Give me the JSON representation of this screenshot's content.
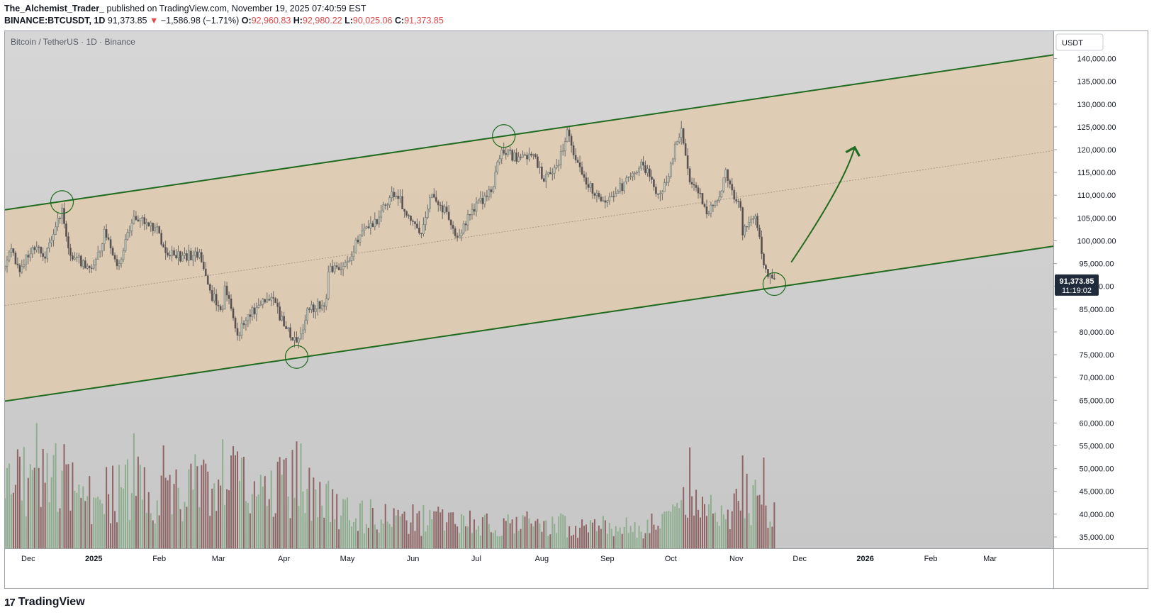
{
  "header": {
    "author": "The_Alchemist_Trader_",
    "published_text": "published on TradingView.com, November 19, 2025 07:40:59 EST",
    "symbol": "BINANCE:BTCUSDT, 1D",
    "last": "91,373.85",
    "change_arrow": "▼",
    "change": "−1,586.98 (−1.71%)",
    "o_label": "O:",
    "o_value": "92,960.83",
    "h_label": "H:",
    "h_value": "92,980.22",
    "l_label": "L:",
    "l_value": "90,025.06",
    "c_label": "C:",
    "c_value": "91,373.85"
  },
  "footer": {
    "brand": "TradingView",
    "mark": "17"
  },
  "colors": {
    "up": "#8fae8f",
    "down": "#8f6464",
    "wick": "#6b6b6b",
    "channel_line": "#1f6b1f",
    "channel_fill": "#e3c9a6",
    "background_top": "#d6d6d6",
    "background_bottom": "#c7c7c7",
    "price_badge": "#1f2a3a"
  },
  "chart_data": {
    "type": "candlestick",
    "title": "Bitcoin / TetherUS · 1D · Binance",
    "currency_label": "USDT",
    "y_axis": {
      "scale": "linear",
      "ylim": [
        32500,
        146000
      ],
      "ticks": [
        "140,000.00",
        "135,000.00",
        "130,000.00",
        "125,000.00",
        "120,000.00",
        "115,000.00",
        "110,000.00",
        "105,000.00",
        "100,000.00",
        "95,000.00",
        "90,000.00",
        "85,000.00",
        "80,000.00",
        "75,000.00",
        "70,000.00",
        "65,000.00",
        "60,000.00",
        "55,000.00",
        "50,000.00",
        "45,000.00",
        "40,000.00",
        "35,000.00"
      ]
    },
    "x_axis": {
      "labels": [
        "Dec",
        "2025",
        "Feb",
        "Mar",
        "Apr",
        "May",
        "Jun",
        "Jul",
        "Aug",
        "Sep",
        "Oct",
        "Nov",
        "Dec",
        "2026",
        "Feb",
        "Mar"
      ],
      "bold": [
        "2025",
        "2026"
      ]
    },
    "x_range": [
      "2024-11-20",
      "2026-03-31"
    ],
    "grid": false,
    "last_price": "91,373.85",
    "countdown": "11:19:02",
    "price_path": [
      [
        "2024-11-20",
        94000
      ],
      [
        "2024-11-23",
        98000
      ],
      [
        "2024-11-27",
        93500
      ],
      [
        "2024-12-01",
        97000
      ],
      [
        "2024-12-05",
        98500
      ],
      [
        "2024-12-09",
        97000
      ],
      [
        "2024-12-13",
        101500
      ],
      [
        "2024-12-17",
        106500
      ],
      [
        "2024-12-20",
        97500
      ],
      [
        "2024-12-26",
        95500
      ],
      [
        "2024-12-31",
        93500
      ],
      [
        "2025-01-06",
        101500
      ],
      [
        "2025-01-13",
        94500
      ],
      [
        "2025-01-20",
        106000
      ],
      [
        "2025-01-25",
        104500
      ],
      [
        "2025-01-31",
        102500
      ],
      [
        "2025-02-05",
        97000
      ],
      [
        "2025-02-12",
        96500
      ],
      [
        "2025-02-20",
        97000
      ],
      [
        "2025-02-25",
        88500
      ],
      [
        "2025-03-03",
        85000
      ],
      [
        "2025-03-04",
        91000
      ],
      [
        "2025-03-10",
        79000
      ],
      [
        "2025-03-15",
        84000
      ],
      [
        "2025-03-26",
        87500
      ],
      [
        "2025-03-31",
        82500
      ],
      [
        "2025-04-07",
        77000
      ],
      [
        "2025-04-12",
        84500
      ],
      [
        "2025-04-21",
        87000
      ],
      [
        "2025-04-22",
        93500
      ],
      [
        "2025-05-01",
        95000
      ],
      [
        "2025-05-09",
        103500
      ],
      [
        "2025-05-15",
        103800
      ],
      [
        "2025-05-22",
        111000
      ],
      [
        "2025-05-26",
        109000
      ],
      [
        "2025-05-31",
        104000
      ],
      [
        "2025-06-05",
        101500
      ],
      [
        "2025-06-09",
        109500
      ],
      [
        "2025-06-16",
        107000
      ],
      [
        "2025-06-22",
        100800
      ],
      [
        "2025-06-30",
        107500
      ],
      [
        "2025-07-09",
        111000
      ],
      [
        "2025-07-11",
        117500
      ],
      [
        "2025-07-14",
        120000
      ],
      [
        "2025-07-20",
        118000
      ],
      [
        "2025-07-28",
        118500
      ],
      [
        "2025-08-02",
        113000
      ],
      [
        "2025-08-09",
        117000
      ],
      [
        "2025-08-13",
        123500
      ],
      [
        "2025-08-17",
        117500
      ],
      [
        "2025-08-25",
        111000
      ],
      [
        "2025-08-31",
        108000
      ],
      [
        "2025-09-10",
        113000
      ],
      [
        "2025-09-18",
        117000
      ],
      [
        "2025-09-25",
        109500
      ],
      [
        "2025-09-30",
        114500
      ],
      [
        "2025-10-03",
        120500
      ],
      [
        "2025-10-06",
        124500
      ],
      [
        "2025-10-10",
        112000
      ],
      [
        "2025-10-15",
        111000
      ],
      [
        "2025-10-17",
        106500
      ],
      [
        "2025-10-22",
        108000
      ],
      [
        "2025-10-27",
        114500
      ],
      [
        "2025-11-03",
        106500
      ],
      [
        "2025-11-04",
        101500
      ],
      [
        "2025-11-10",
        106000
      ],
      [
        "2025-11-14",
        95000
      ],
      [
        "2025-11-17",
        92000
      ],
      [
        "2025-11-19",
        91373.85
      ]
    ],
    "volume_scale": [
      0,
      65
    ],
    "volume_path": [
      [
        "2024-11-20",
        42
      ],
      [
        "2024-12-05",
        40
      ],
      [
        "2024-12-15",
        48
      ],
      [
        "2025-01-01",
        30
      ],
      [
        "2025-01-20",
        38
      ],
      [
        "2025-02-05",
        30
      ],
      [
        "2025-03-03",
        48
      ],
      [
        "2025-03-20",
        30
      ],
      [
        "2025-04-08",
        45
      ],
      [
        "2025-04-25",
        25
      ],
      [
        "2025-05-20",
        18
      ],
      [
        "2025-07-01",
        16
      ],
      [
        "2025-08-15",
        14
      ],
      [
        "2025-09-20",
        12
      ],
      [
        "2025-10-10",
        30
      ],
      [
        "2025-10-25",
        18
      ],
      [
        "2025-11-05",
        30
      ],
      [
        "2025-11-19",
        25
      ]
    ],
    "volume_spikes": [
      [
        "2024-12-05",
        62
      ],
      [
        "2025-01-20",
        57
      ],
      [
        "2025-02-03",
        51
      ],
      [
        "2025-03-03",
        54
      ],
      [
        "2025-03-10",
        48
      ],
      [
        "2025-04-07",
        53
      ],
      [
        "2025-04-09",
        52
      ],
      [
        "2025-10-10",
        50
      ],
      [
        "2025-11-04",
        46
      ],
      [
        "2025-11-14",
        45
      ]
    ],
    "channel": {
      "upper": [
        [
          "2024-11-20",
          106800
        ],
        [
          "2026-03-31",
          140800
        ]
      ],
      "lower": [
        [
          "2024-11-20",
          64800
        ],
        [
          "2026-03-31",
          98800
        ]
      ]
    },
    "touch_points": [
      [
        "2024-12-17",
        108500
      ],
      [
        "2025-07-14",
        123000
      ],
      [
        "2025-04-07",
        74500
      ],
      [
        "2025-11-19",
        90500
      ]
    ],
    "projection_arrow": [
      [
        "2025-11-27",
        95300
      ],
      [
        "2025-12-22",
        112500
      ],
      [
        "2025-12-27",
        120500
      ]
    ]
  }
}
